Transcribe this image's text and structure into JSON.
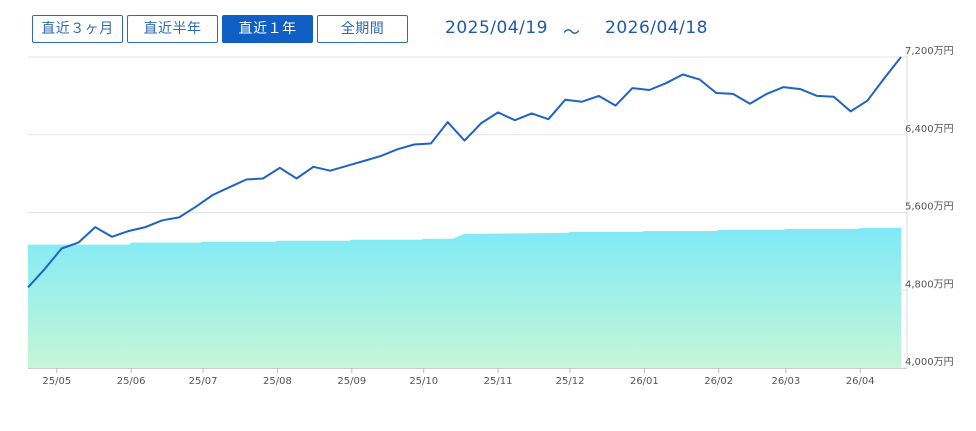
{
  "toolbar": {
    "buttons": [
      {
        "label": "直近３ヶ月",
        "active": false
      },
      {
        "label": "直近半年",
        "active": false
      },
      {
        "label": "直近１年",
        "active": true
      },
      {
        "label": "全期間",
        "active": false
      }
    ],
    "start_date": "2025/04/19",
    "separator": "～",
    "end_date": "2026/04/18"
  },
  "colors": {
    "accent": "#0f5fc4",
    "line": "#1e63c6",
    "area_top": "#7eeaf8",
    "area_bottom": "#c6f6d6",
    "grid": "#e3e3e3"
  },
  "chart_data": {
    "type": "line",
    "title": "",
    "xlabel": "",
    "ylabel": "",
    "ylim": [
      4000,
      7200
    ],
    "y_ticks": [
      {
        "value": 4000,
        "label": "4,000万円"
      },
      {
        "value": 4800,
        "label": "4,800万円"
      },
      {
        "value": 5600,
        "label": "5,600万円"
      },
      {
        "value": 6400,
        "label": "6,400万円"
      },
      {
        "value": 7200,
        "label": "7,200万円"
      }
    ],
    "x_range": [
      "2025-04-19",
      "2026-04-18"
    ],
    "x_ticks": [
      {
        "date": "2025-05-01",
        "label": "25/05"
      },
      {
        "date": "2025-06-01",
        "label": "25/06"
      },
      {
        "date": "2025-07-01",
        "label": "25/07"
      },
      {
        "date": "2025-08-01",
        "label": "25/08"
      },
      {
        "date": "2025-09-01",
        "label": "25/09"
      },
      {
        "date": "2025-10-01",
        "label": "25/10"
      },
      {
        "date": "2025-11-01",
        "label": "25/11"
      },
      {
        "date": "2025-12-01",
        "label": "25/12"
      },
      {
        "date": "2026-01-01",
        "label": "26/01"
      },
      {
        "date": "2026-02-01",
        "label": "26/02"
      },
      {
        "date": "2026-03-01",
        "label": "26/03"
      },
      {
        "date": "2026-04-01",
        "label": "26/04"
      }
    ],
    "grid": "horizontal",
    "series": [
      {
        "kind": "line",
        "points": [
          [
            "2025-04-19",
            4830
          ],
          [
            "2025-04-26",
            5020
          ],
          [
            "2025-05-03",
            5230
          ],
          [
            "2025-05-10",
            5290
          ],
          [
            "2025-05-17",
            5450
          ],
          [
            "2025-05-24",
            5350
          ],
          [
            "2025-05-31",
            5410
          ],
          [
            "2025-06-07",
            5450
          ],
          [
            "2025-06-14",
            5520
          ],
          [
            "2025-06-21",
            5550
          ],
          [
            "2025-06-28",
            5660
          ],
          [
            "2025-07-05",
            5780
          ],
          [
            "2025-07-12",
            5860
          ],
          [
            "2025-07-19",
            5940
          ],
          [
            "2025-07-26",
            5950
          ],
          [
            "2025-08-02",
            6060
          ],
          [
            "2025-08-09",
            5950
          ],
          [
            "2025-08-16",
            6070
          ],
          [
            "2025-08-23",
            6030
          ],
          [
            "2025-08-30",
            6080
          ],
          [
            "2025-09-06",
            6130
          ],
          [
            "2025-09-13",
            6180
          ],
          [
            "2025-09-20",
            6250
          ],
          [
            "2025-09-27",
            6300
          ],
          [
            "2025-10-04",
            6310
          ],
          [
            "2025-10-11",
            6530
          ],
          [
            "2025-10-18",
            6340
          ],
          [
            "2025-10-25",
            6520
          ],
          [
            "2025-11-01",
            6630
          ],
          [
            "2025-11-08",
            6550
          ],
          [
            "2025-11-15",
            6620
          ],
          [
            "2025-11-22",
            6560
          ],
          [
            "2025-11-29",
            6760
          ],
          [
            "2025-12-06",
            6740
          ],
          [
            "2025-12-13",
            6800
          ],
          [
            "2025-12-20",
            6700
          ],
          [
            "2025-12-27",
            6880
          ],
          [
            "2026-01-03",
            6860
          ],
          [
            "2026-01-10",
            6930
          ],
          [
            "2026-01-17",
            7020
          ],
          [
            "2026-01-24",
            6970
          ],
          [
            "2026-01-31",
            6830
          ],
          [
            "2026-02-07",
            6820
          ],
          [
            "2026-02-14",
            6720
          ],
          [
            "2026-02-21",
            6820
          ],
          [
            "2026-02-28",
            6890
          ],
          [
            "2026-03-07",
            6870
          ],
          [
            "2026-03-14",
            6800
          ],
          [
            "2026-03-21",
            6790
          ],
          [
            "2026-03-28",
            6640
          ],
          [
            "2026-04-04",
            6750
          ],
          [
            "2026-04-11",
            6980
          ],
          [
            "2026-04-18",
            7200
          ]
        ]
      },
      {
        "kind": "area",
        "points": [
          [
            "2025-04-19",
            5270
          ],
          [
            "2025-05-31",
            5270
          ],
          [
            "2025-06-01",
            5290
          ],
          [
            "2025-06-30",
            5290
          ],
          [
            "2025-07-01",
            5300
          ],
          [
            "2025-07-31",
            5300
          ],
          [
            "2025-08-01",
            5310
          ],
          [
            "2025-08-31",
            5310
          ],
          [
            "2025-09-01",
            5320
          ],
          [
            "2025-09-30",
            5320
          ],
          [
            "2025-10-01",
            5330
          ],
          [
            "2025-10-13",
            5330
          ],
          [
            "2025-10-18",
            5380
          ],
          [
            "2025-11-30",
            5390
          ],
          [
            "2025-12-01",
            5400
          ],
          [
            "2025-12-31",
            5400
          ],
          [
            "2026-01-01",
            5410
          ],
          [
            "2026-01-31",
            5410
          ],
          [
            "2026-02-01",
            5420
          ],
          [
            "2026-02-28",
            5420
          ],
          [
            "2026-03-01",
            5430
          ],
          [
            "2026-03-31",
            5430
          ],
          [
            "2026-04-01",
            5440
          ],
          [
            "2026-04-18",
            5440
          ]
        ]
      }
    ]
  }
}
